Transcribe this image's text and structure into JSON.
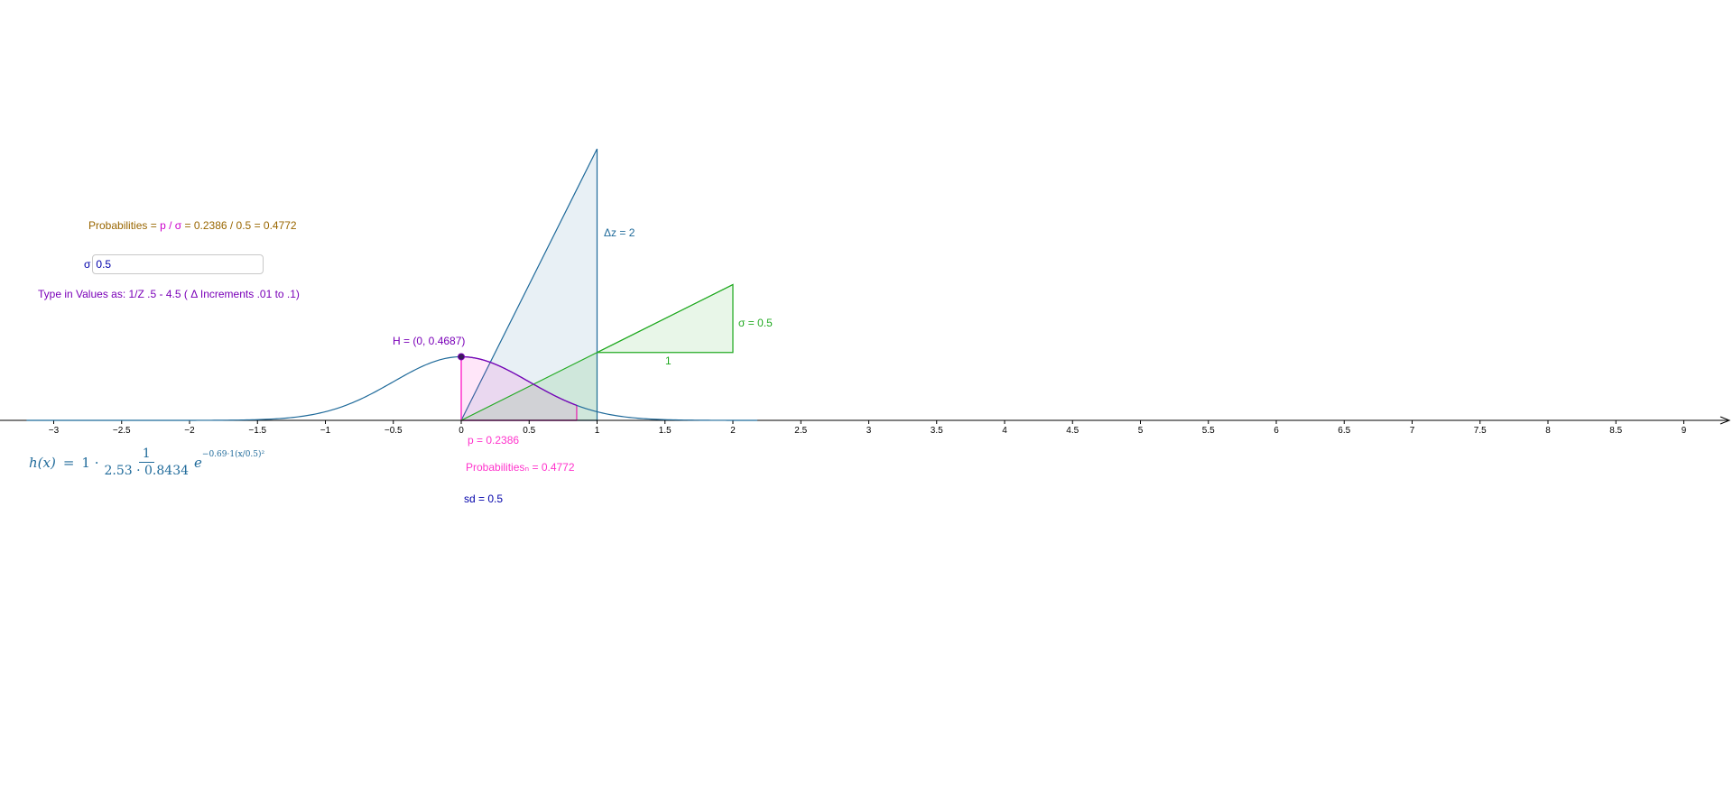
{
  "probability_formula": {
    "prefix": "Probabilities =",
    "ratio": "p / σ",
    "result": "= 0.2386 / 0.5 = 0.4772"
  },
  "sigma_input": {
    "label": "σ",
    "value": "0.5"
  },
  "hint_text": "Type in Values as:  1/Z    .5 -  4.5  ( Δ  Increments  .01 to .1)",
  "labels": {
    "point_H": "H = (0, 0.4687)",
    "delta_z": "Δz = 2",
    "sigma": "σ = 0.5",
    "one": "1",
    "p": "p = 0.2386",
    "probabilities": "Probabilitiesₙ = 0.4772",
    "sd": "sd = 0.5"
  },
  "formula": {
    "lhs": "h(x)",
    "eq": "=",
    "coef": "1 ·",
    "numerator": "1",
    "denominator": "2.53 · 0.8434",
    "base": "e",
    "exponent": "−0.69·1(x/0.5)²"
  },
  "chart_data": {
    "type": "line",
    "x_ticks": [
      -3,
      -2.5,
      -2,
      -1.5,
      -1,
      -0.5,
      0,
      0.5,
      1,
      1.5,
      2,
      2.5,
      3,
      3.5,
      4,
      4.5,
      5,
      5.5,
      6,
      6.5,
      7,
      7.5,
      8,
      8.5,
      9
    ],
    "x_tick_labels": [
      "−3",
      "−2.5",
      "−2",
      "−1.5",
      "−1",
      "−0.5",
      "0",
      "0.5",
      "1",
      "1.5",
      "2",
      "2.5",
      "3",
      "3.5",
      "4",
      "4.5",
      "5",
      "5.5",
      "6",
      "6.5",
      "7",
      "7.5",
      "8",
      "8.5",
      "9"
    ],
    "sigma": 0.5,
    "peak": 0.4687,
    "point_H": [
      0,
      0.4687
    ],
    "p_area_upper": 0.85,
    "delta_z": 2,
    "colors": {
      "curve": "#1f6a9a",
      "triangle": "#1f6a9a",
      "slope": "#22aa22",
      "area": "#ff33cc",
      "point": "#7a00b8"
    }
  }
}
